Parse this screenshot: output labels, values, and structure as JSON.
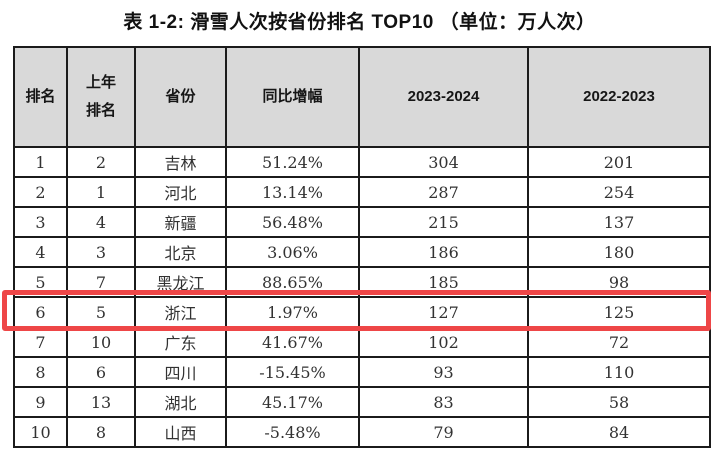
{
  "title": "表 1-2: 滑雪人次按省份排名 TOP10 （单位：万人次）",
  "table": {
    "columns": {
      "rank": "排名",
      "prev_rank": "上年\n排名",
      "province": "省份",
      "yoy_growth": "同比增幅",
      "season_2023_2024": "2023-2024",
      "season_2022_2023": "2022-2023"
    },
    "rows": [
      [
        "1",
        "2",
        "吉林",
        "51.24%",
        "304",
        "201"
      ],
      [
        "2",
        "1",
        "河北",
        "13.14%",
        "287",
        "254"
      ],
      [
        "3",
        "4",
        "新疆",
        "56.48%",
        "215",
        "137"
      ],
      [
        "4",
        "3",
        "北京",
        "3.06%",
        "186",
        "180"
      ],
      [
        "5",
        "7",
        "黑龙江",
        "88.65%",
        "185",
        "98"
      ],
      [
        "6",
        "5",
        "浙江",
        "1.97%",
        "127",
        "125"
      ],
      [
        "7",
        "10",
        "广东",
        "41.67%",
        "102",
        "72"
      ],
      [
        "8",
        "6",
        "四川",
        "-15.45%",
        "93",
        "110"
      ],
      [
        "9",
        "13",
        "湖北",
        "45.17%",
        "83",
        "58"
      ],
      [
        "10",
        "8",
        "山西",
        "-5.48%",
        "79",
        "84"
      ]
    ],
    "highlighted_row_rank": "6",
    "highlighted_row_province": "浙江"
  },
  "colors": {
    "header_bg": "#d9d9d9",
    "table_border": "#1b1b1b",
    "highlight_red": "#ee4647",
    "body_text": "#323232",
    "title_text": "#111111"
  }
}
